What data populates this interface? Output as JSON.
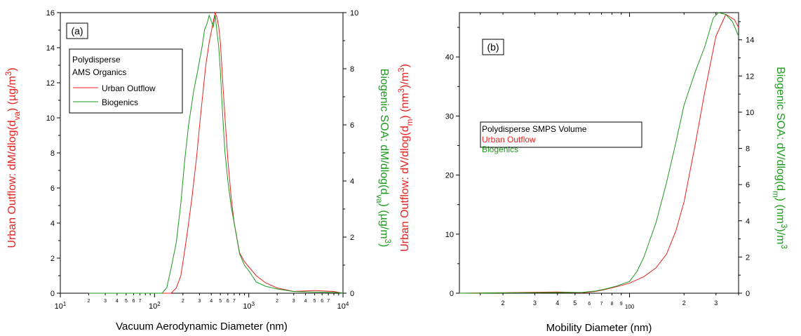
{
  "colors": {
    "urban": "#e8221f",
    "biogenic": "#1d9a1d",
    "axis": "#000000"
  },
  "chart_data": [
    {
      "panel_label": "(a)",
      "type": "line",
      "x_scale": "log",
      "xlabel": "Vacuum Aerodynamic Diameter (nm)",
      "xlim": [
        10,
        10000
      ],
      "x_major_ticks": [
        {
          "value": 10,
          "base": "10",
          "exp": "1"
        },
        {
          "value": 100,
          "base": "10",
          "exp": "2"
        },
        {
          "value": 1000,
          "base": "10",
          "exp": "3"
        },
        {
          "value": 10000,
          "base": "10",
          "exp": "4"
        }
      ],
      "x_minor_labels": [
        "2",
        "3",
        "4",
        "5",
        "6",
        "7"
      ],
      "left_axis": {
        "label_parts": [
          "Urban Outflow: dM/dlog(d",
          "va",
          ") (µg/m",
          "3",
          ")"
        ],
        "ylim": [
          0,
          16
        ],
        "ticks": [
          "0",
          "2",
          "4",
          "6",
          "8",
          "10",
          "12",
          "14",
          "16"
        ]
      },
      "right_axis": {
        "label_parts": [
          "Biogenic SOA: dM/dlog(d",
          "va",
          ") (µg/m",
          "3",
          ")"
        ],
        "ylim": [
          0,
          10
        ],
        "ticks": [
          "0",
          "2",
          "4",
          "6",
          "8",
          "10"
        ]
      },
      "legend": {
        "position": "top-left",
        "header": [
          "Polydisperse",
          "AMS Organics"
        ],
        "entries": [
          {
            "name": "Urban Outflow",
            "color": "#e8221f"
          },
          {
            "name": "Biogenics",
            "color": "#1d9a1d"
          }
        ]
      },
      "series": [
        {
          "name": "Urban Outflow",
          "axis": "left",
          "x": [
            20,
            100,
            150,
            170,
            190,
            210,
            230,
            250,
            280,
            300,
            320,
            350,
            380,
            400,
            420,
            440,
            460,
            480,
            500,
            530,
            560,
            600,
            650,
            700,
            800,
            900,
            1000,
            1200,
            1500,
            2000,
            3000,
            5000,
            8000,
            10000
          ],
          "y": [
            0,
            0,
            0,
            0.3,
            1.0,
            2.5,
            4.0,
            5.5,
            7.8,
            9.5,
            11.0,
            13.0,
            14.3,
            14.9,
            15.5,
            16.0,
            15.7,
            15.2,
            14.3,
            12.0,
            10.0,
            7.6,
            5.5,
            4.0,
            2.3,
            1.8,
            1.5,
            1.0,
            0.6,
            0.3,
            0.1,
            0.15,
            0.1,
            0
          ]
        },
        {
          "name": "Biogenics",
          "axis": "right",
          "x": [
            20,
            50,
            120,
            135,
            150,
            170,
            190,
            210,
            230,
            260,
            290,
            320,
            340,
            360,
            380,
            400,
            420,
            440,
            460,
            480,
            500,
            530,
            560,
            600,
            650,
            700,
            800,
            900,
            1000,
            1200,
            1500,
            2000,
            3000,
            5000,
            8000,
            10000
          ],
          "y": [
            0,
            0,
            0,
            0.2,
            0.9,
            1.8,
            3.2,
            4.8,
            6.0,
            7.2,
            8.0,
            8.8,
            9.4,
            9.6,
            9.9,
            9.7,
            9.5,
            9.9,
            9.3,
            8.8,
            7.9,
            6.3,
            5.0,
            4.0,
            3.1,
            2.5,
            1.4,
            1.0,
            0.8,
            0.4,
            0.25,
            0.15,
            0.06,
            0.04,
            0.03,
            0
          ]
        }
      ]
    },
    {
      "panel_label": "(b)",
      "type": "line",
      "x_scale": "log",
      "xlabel": "Mobility Diameter (nm)",
      "xlim": [
        11.5,
        400
      ],
      "x_major_label": "100",
      "x_minor_labels": [
        "2",
        "3",
        "4",
        "5",
        "6",
        "7",
        "8",
        "9",
        "2",
        "3"
      ],
      "left_axis": {
        "ylim": [
          0,
          47.5
        ],
        "ticks": [
          "0",
          "10",
          "20",
          "30",
          "40"
        ]
      },
      "right_axis": {
        "label_parts": [
          "Biogenic SOA: dV/dlog(d",
          "m",
          ") (nm",
          "3",
          ")/m",
          "3"
        ],
        "ylim": [
          0,
          15.5
        ],
        "ticks": [
          "0",
          "2",
          "4",
          "6",
          "8",
          "10",
          "12",
          "14"
        ]
      },
      "legend": {
        "position": "center-left",
        "header": [
          "Polydisperse SMPS Volume"
        ],
        "entries": [
          {
            "name": "Urban Outflow",
            "color": "#e8221f"
          },
          {
            "name": "Biogenics",
            "color": "#1d9a1d"
          }
        ]
      },
      "series": [
        {
          "name": "Urban Outflow",
          "axis": "left",
          "x": [
            11.5,
            20,
            40,
            55,
            65,
            75,
            85,
            100,
            120,
            140,
            160,
            180,
            200,
            230,
            260,
            300,
            340,
            380,
            400
          ],
          "y": [
            0,
            0.1,
            0.2,
            0.1,
            0.3,
            0.7,
            1.1,
            1.7,
            2.8,
            4.3,
            6.6,
            10.5,
            15.5,
            25.0,
            34.0,
            43.5,
            47.2,
            46.3,
            45.0
          ]
        },
        {
          "name": "Biogenics",
          "axis": "right",
          "x": [
            11.5,
            20,
            40,
            55,
            65,
            75,
            85,
            100,
            110,
            120,
            140,
            160,
            180,
            200,
            230,
            260,
            290,
            310,
            340,
            370,
            400
          ],
          "y": [
            0,
            0.02,
            0.04,
            0.05,
            0.12,
            0.25,
            0.4,
            0.65,
            1.2,
            2.0,
            3.9,
            6.1,
            8.3,
            10.4,
            12.2,
            13.6,
            15.2,
            15.5,
            15.4,
            15.0,
            14.2
          ]
        }
      ]
    }
  ]
}
